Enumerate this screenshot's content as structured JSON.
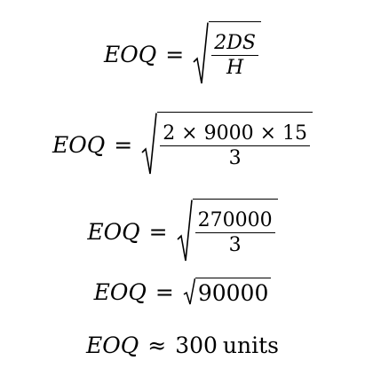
{
  "lines": [
    {
      "lhs": "EOQ",
      "op": "=",
      "num": "2DS",
      "den": "H"
    },
    {
      "lhs": "EOQ",
      "op": "=",
      "num": "2 × 9000 × 15",
      "den": "3"
    },
    {
      "lhs": "EOQ",
      "op": "=",
      "num": "270000",
      "den": "3"
    },
    {
      "lhs": "EOQ",
      "op": "=",
      "radicand": "90000"
    },
    {
      "lhs": "EOQ",
      "op": "≈",
      "value": "300",
      "unit": "units"
    }
  ]
}
